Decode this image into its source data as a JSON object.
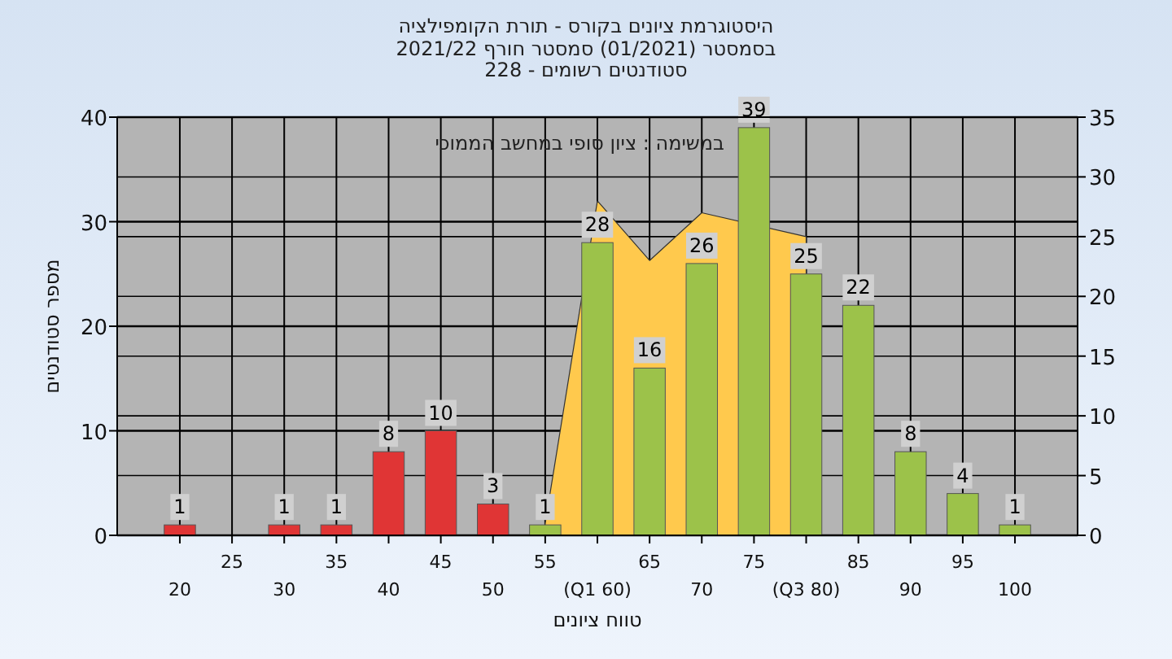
{
  "chart_data": {
    "type": "bar",
    "title": "היסטוגרמת ציונים בקורס - תורת הקומפילציה",
    "subtitle": "בסמסטר (01/2021) סמסטר חורף 2021/22\nסטודנטים רשומים - 228",
    "xlabel": "טווח ציונים",
    "ylabel": "מספר סטודנטים",
    "annotations": [
      "במשימה : ציון סופי במחשב הממוכי"
    ],
    "categories": [
      "20",
      "25",
      "30",
      "35",
      "40",
      "45",
      "50",
      "55",
      "(Q1 60)",
      "65",
      "70",
      "75",
      "(Q3 80)",
      "85",
      "90",
      "95",
      "100"
    ],
    "series": [
      {
        "type": "area",
        "axis": "y2",
        "color": "#ffc94d",
        "values": [
          null,
          null,
          null,
          null,
          null,
          null,
          null,
          1,
          28,
          23,
          27,
          null,
          25,
          null,
          null,
          null,
          null
        ]
      },
      {
        "colors": [
          "#e03535",
          null,
          "#e03535",
          "#e03535",
          "#e03535",
          "#e03535",
          "#e03535",
          "#9cc24a",
          "#9cc24a",
          "#9cc24a",
          "#9cc24a",
          "#9cc24a",
          "#9cc24a",
          "#9cc24a",
          "#9cc24a",
          "#9cc24a",
          "#9cc24a"
        ],
        "values": [
          1,
          null,
          1,
          1,
          8,
          10,
          3,
          1,
          28,
          16,
          26,
          39,
          25,
          22,
          8,
          4,
          1
        ],
        "value_labels": [
          "1",
          null,
          "1",
          "1",
          "8",
          "10",
          "3",
          "1",
          "28",
          "16",
          "26",
          "39",
          "25",
          "22",
          "8",
          "4",
          "1"
        ]
      }
    ],
    "ylim": [
      0,
      40
    ],
    "yticks": [
      0,
      10,
      20,
      30,
      40
    ],
    "y2lim": [
      0,
      35
    ],
    "y2ticks": [
      0,
      5,
      10,
      15,
      20,
      25,
      30,
      35
    ],
    "grid": true
  }
}
